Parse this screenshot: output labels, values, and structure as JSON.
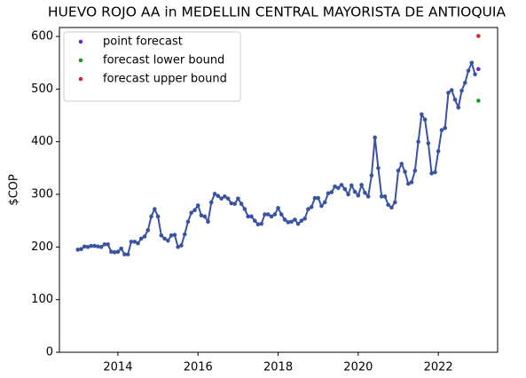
{
  "chart_data": {
    "type": "line",
    "title": "HUEVO ROJO AA in MEDELLIN CENTRAL MAYORISTA DE ANTIOQUIA",
    "y_label": "$COP",
    "xlim": [
      2012.54,
      2023.48
    ],
    "ylim": [
      0,
      617
    ],
    "xticks": [
      2014,
      2016,
      2018,
      2020,
      2022
    ],
    "yticks": [
      0,
      100,
      200,
      300,
      400,
      500,
      600
    ],
    "grid": false,
    "legend": "upper left",
    "series": [
      {
        "color": "#3953a4",
        "x": [
          2013,
          2013.083,
          2013.167,
          2013.25,
          2013.333,
          2013.417,
          2013.5,
          2013.583,
          2013.667,
          2013.75,
          2013.833,
          2013.917,
          2014,
          2014.083,
          2014.167,
          2014.25,
          2014.333,
          2014.417,
          2014.5,
          2014.583,
          2014.667,
          2014.75,
          2014.833,
          2014.917,
          2015,
          2015.083,
          2015.167,
          2015.25,
          2015.333,
          2015.417,
          2015.5,
          2015.583,
          2015.667,
          2015.75,
          2015.833,
          2015.917,
          2016,
          2016.083,
          2016.167,
          2016.25,
          2016.333,
          2016.417,
          2016.5,
          2016.583,
          2016.667,
          2016.75,
          2016.833,
          2016.917,
          2017,
          2017.083,
          2017.167,
          2017.25,
          2017.333,
          2017.417,
          2017.5,
          2017.583,
          2017.667,
          2017.75,
          2017.833,
          2017.917,
          2018,
          2018.083,
          2018.167,
          2018.25,
          2018.333,
          2018.417,
          2018.5,
          2018.583,
          2018.667,
          2018.75,
          2018.833,
          2018.917,
          2019,
          2019.083,
          2019.167,
          2019.25,
          2019.333,
          2019.417,
          2019.5,
          2019.583,
          2019.667,
          2019.75,
          2019.833,
          2019.917,
          2020,
          2020.083,
          2020.167,
          2020.25,
          2020.333,
          2020.417,
          2020.5,
          2020.583,
          2020.667,
          2020.75,
          2020.833,
          2020.917,
          2021,
          2021.083,
          2021.167,
          2021.25,
          2021.333,
          2021.417,
          2021.5,
          2021.583,
          2021.667,
          2021.75,
          2021.833,
          2021.917,
          2022,
          2022.083,
          2022.167,
          2022.25,
          2022.333,
          2022.417,
          2022.5,
          2022.583,
          2022.667,
          2022.75,
          2022.833,
          2022.917
        ],
        "values": [
          195,
          196,
          201,
          200,
          202,
          202,
          201,
          200,
          205,
          205,
          191,
          190,
          191,
          197,
          186,
          186,
          210,
          210,
          207,
          216,
          220,
          232,
          258,
          272,
          258,
          222,
          216,
          212,
          222,
          223,
          200,
          203,
          224,
          248,
          265,
          270,
          279,
          260,
          258,
          248,
          285,
          301,
          297,
          292,
          296,
          292,
          283,
          282,
          292,
          282,
          272,
          258,
          258,
          250,
          243,
          244,
          262,
          262,
          258,
          262,
          274,
          262,
          252,
          247,
          248,
          252,
          244,
          250,
          254,
          272,
          276,
          293,
          293,
          278,
          285,
          302,
          304,
          315,
          312,
          318,
          310,
          300,
          317,
          305,
          298,
          318,
          303,
          296,
          336,
          408,
          350,
          296,
          296,
          280,
          275,
          285,
          345,
          358,
          343,
          320,
          323,
          345,
          400,
          452,
          442,
          397,
          340,
          342,
          382,
          422,
          426,
          493,
          498,
          480,
          465,
          497,
          512,
          535,
          550,
          528
        ]
      },
      {
        "name": "point forecast",
        "color": "#7b1fe0",
        "x": [
          2023
        ],
        "values": [
          538
        ]
      },
      {
        "name": "forecast lower bound",
        "color": "#1a9a1a",
        "x": [
          2023
        ],
        "values": [
          478
        ]
      },
      {
        "name": "forecast upper bound",
        "color": "#d62728",
        "x": [
          2023
        ],
        "values": [
          601
        ]
      }
    ]
  }
}
